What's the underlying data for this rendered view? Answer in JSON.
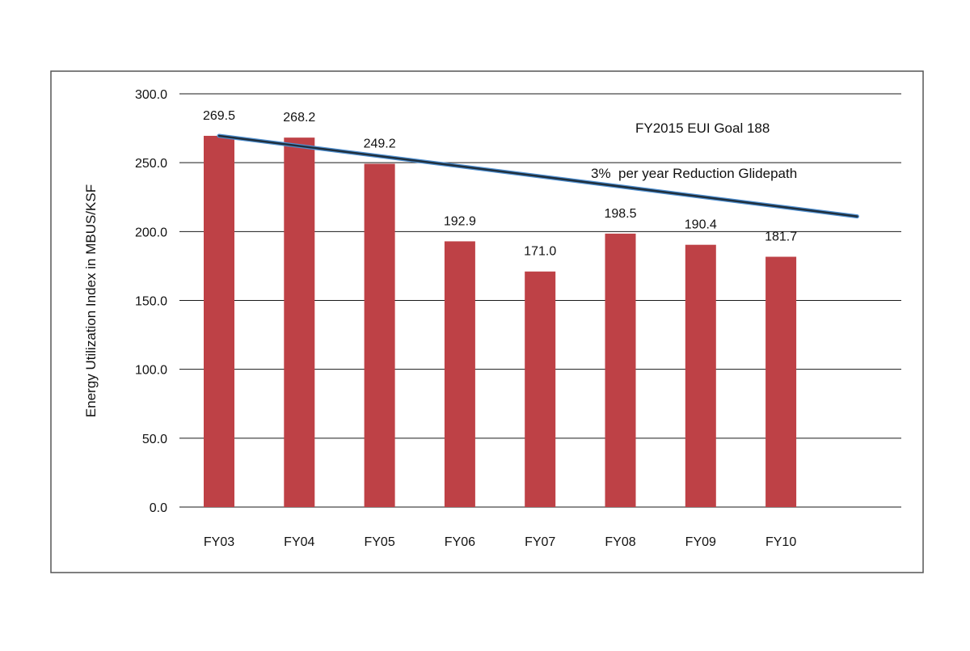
{
  "chart_data": {
    "type": "bar",
    "title": "",
    "xlabel": "",
    "ylabel": "Energy Utilization Index in MBUS/KSF",
    "ylim": [
      0,
      300
    ],
    "yticks": [
      "0.0",
      "50.0",
      "100.0",
      "150.0",
      "200.0",
      "250.0",
      "300.0"
    ],
    "grid": true,
    "legend": "none",
    "categories": [
      "FY03",
      "FY04",
      "FY05",
      "FY06",
      "FY07",
      "FY08",
      "FY09",
      "FY10"
    ],
    "values": [
      269.5,
      268.2,
      249.2,
      192.9,
      171.0,
      198.5,
      190.4,
      181.7
    ],
    "data_labels": [
      "269.5",
      "268.2",
      "249.2",
      "192.9",
      "171.0",
      "198.5",
      "190.4",
      "181.7"
    ],
    "glidepath": {
      "label": "3%  per year Reduction Glidepath",
      "start_value": 269.5,
      "end_value": 211
    },
    "goal_annotation": "FY2015  EUI  Goal 188",
    "colors": {
      "bar": "#be4146",
      "glidepath": "#1f2f3d",
      "glidepath_halo": "#4f8fd0",
      "grid": "#1a1a1a",
      "frame": "#555555"
    }
  }
}
